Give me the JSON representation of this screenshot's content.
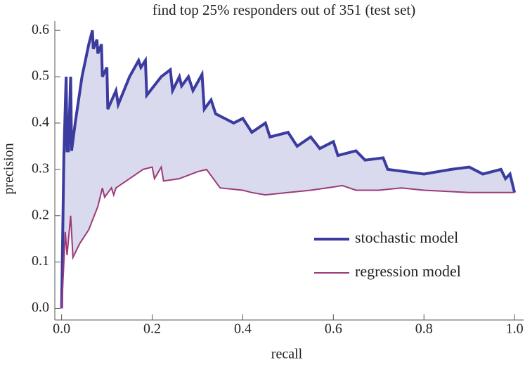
{
  "chart_data": {
    "type": "line",
    "title": "find top 25% responders out of 351 (test set)",
    "x_label": "recall",
    "y_label": "precision",
    "xlim": [
      -0.015,
      1.02
    ],
    "ylim": [
      -0.025,
      0.62
    ],
    "xticks": [
      {
        "value": 0,
        "label": "0.0"
      },
      0.2,
      0.4,
      0.6,
      0.8,
      {
        "value": 1,
        "label": "1.0"
      }
    ],
    "yticks": [
      {
        "value": 0,
        "label": "0.0"
      },
      0.1,
      0.2,
      0.3,
      0.4,
      0.5,
      0.6
    ],
    "fill_between": true,
    "fill_color": "#dadaee",
    "legend_position": "lower right",
    "series": [
      {
        "name": "stochastic model",
        "color": "#3b3ba0",
        "x": [
          0,
          0.005,
          0.01,
          0.012,
          0.015,
          0.02,
          0.022,
          0.03,
          0.045,
          0.06,
          0.068,
          0.07,
          0.078,
          0.08,
          0.088,
          0.09,
          0.1,
          0.102,
          0.12,
          0.125,
          0.15,
          0.17,
          0.175,
          0.185,
          0.188,
          0.22,
          0.24,
          0.245,
          0.26,
          0.265,
          0.28,
          0.29,
          0.31,
          0.315,
          0.33,
          0.34,
          0.36,
          0.38,
          0.4,
          0.42,
          0.45,
          0.46,
          0.5,
          0.52,
          0.55,
          0.57,
          0.6,
          0.61,
          0.65,
          0.67,
          0.71,
          0.72,
          0.8,
          0.86,
          0.9,
          0.93,
          0.97,
          0.98,
          0.99,
          1.0
        ],
        "values": [
          0,
          0.33,
          0.5,
          0.34,
          0.34,
          0.5,
          0.34,
          0.4,
          0.5,
          0.57,
          0.6,
          0.56,
          0.58,
          0.55,
          0.57,
          0.5,
          0.52,
          0.43,
          0.47,
          0.44,
          0.5,
          0.535,
          0.52,
          0.535,
          0.46,
          0.5,
          0.515,
          0.47,
          0.5,
          0.48,
          0.5,
          0.47,
          0.505,
          0.43,
          0.45,
          0.42,
          0.41,
          0.4,
          0.41,
          0.38,
          0.4,
          0.37,
          0.38,
          0.35,
          0.37,
          0.345,
          0.36,
          0.33,
          0.34,
          0.32,
          0.325,
          0.3,
          0.29,
          0.3,
          0.305,
          0.29,
          0.3,
          0.28,
          0.29,
          0.25
        ]
      },
      {
        "name": "regression model",
        "color": "#9c3a78",
        "x": [
          0,
          0.005,
          0.008,
          0.012,
          0.02,
          0.025,
          0.04,
          0.06,
          0.08,
          0.09,
          0.095,
          0.11,
          0.115,
          0.12,
          0.15,
          0.18,
          0.2,
          0.205,
          0.22,
          0.225,
          0.26,
          0.3,
          0.32,
          0.35,
          0.4,
          0.42,
          0.45,
          0.5,
          0.55,
          0.6,
          0.62,
          0.65,
          0.7,
          0.75,
          0.8,
          0.9,
          1.0
        ],
        "values": [
          0,
          0.1,
          0.165,
          0.115,
          0.2,
          0.11,
          0.14,
          0.17,
          0.22,
          0.26,
          0.24,
          0.26,
          0.245,
          0.26,
          0.28,
          0.3,
          0.305,
          0.28,
          0.305,
          0.275,
          0.28,
          0.295,
          0.3,
          0.26,
          0.255,
          0.25,
          0.245,
          0.25,
          0.255,
          0.262,
          0.265,
          0.255,
          0.255,
          0.26,
          0.255,
          0.25,
          0.25
        ]
      }
    ]
  }
}
